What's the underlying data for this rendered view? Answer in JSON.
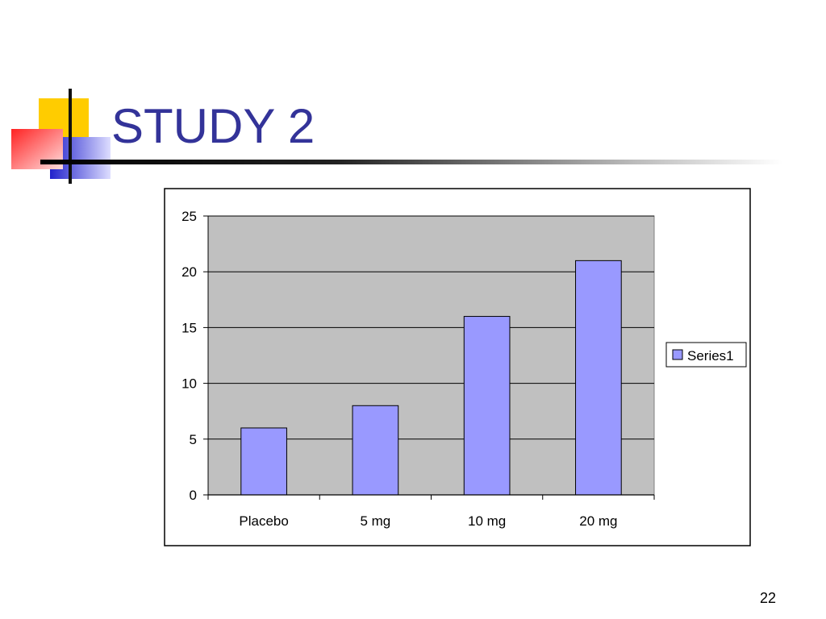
{
  "slide": {
    "title": "STUDY 2",
    "page_number": "22"
  },
  "colors": {
    "title": "#333399",
    "bar_fill": "#9999ff",
    "plot_background": "#c0c0c0",
    "logo_yellow": "#ffcc00",
    "logo_red": "#ff3333",
    "logo_blue": "#3333cc"
  },
  "chart_data": {
    "type": "bar",
    "categories": [
      "Placebo",
      "5 mg",
      "10 mg",
      "20 mg"
    ],
    "series": [
      {
        "name": "Series1",
        "values": [
          6,
          8,
          16,
          21
        ]
      }
    ],
    "yticks": [
      "0",
      "5",
      "10",
      "15",
      "20",
      "25"
    ],
    "ylim": [
      0,
      25
    ],
    "title": "",
    "xlabel": "",
    "ylabel": "",
    "grid": true,
    "legend": "right"
  }
}
